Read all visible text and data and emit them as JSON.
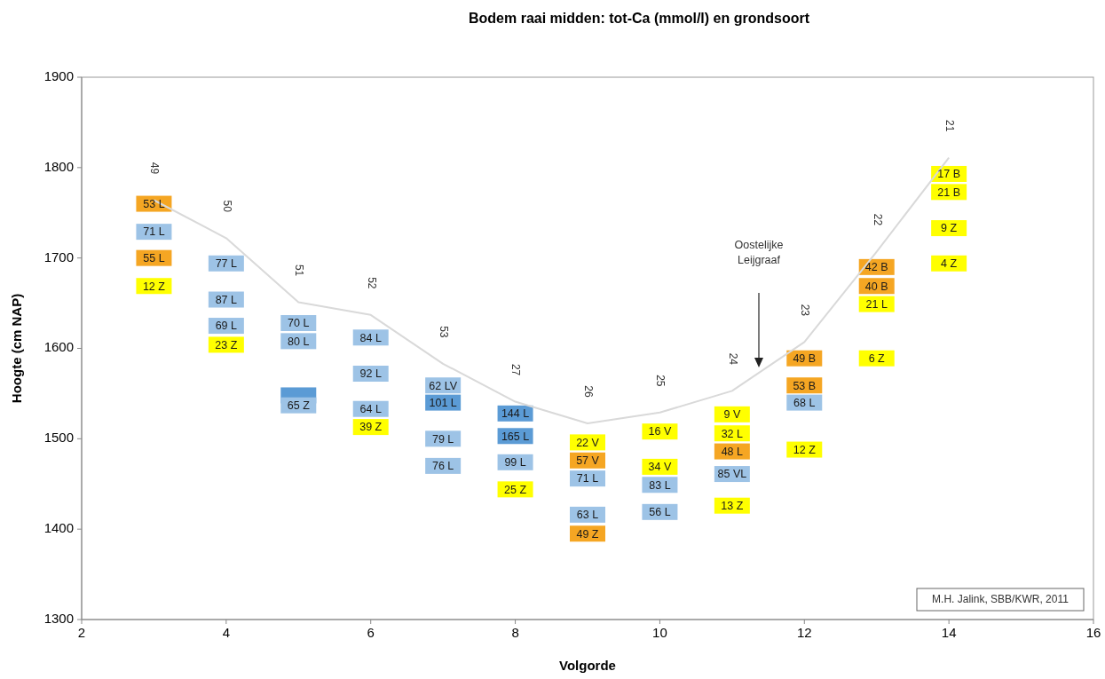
{
  "chart_data": {
    "type": "scatter",
    "title": "Bodem raai midden: tot-Ca (mmol/l)  en grondsoort",
    "xlabel": "Volgorde",
    "ylabel": "Hoogte (cm NAP)",
    "xlim": [
      2,
      16
    ],
    "xticks": [
      2,
      4,
      6,
      8,
      10,
      12,
      14,
      16
    ],
    "ylim": [
      1300,
      1900
    ],
    "yticks": [
      1300,
      1400,
      1500,
      1600,
      1700,
      1800,
      1900
    ],
    "grid": false,
    "marker": "square",
    "series": [
      {
        "type": "line",
        "color": "#d9d9d9",
        "marker": "none",
        "line_style": "solid",
        "x": [
          3,
          4,
          5,
          6,
          7,
          8,
          9,
          10,
          11,
          12,
          13,
          14
        ],
        "values": [
          1764,
          1722,
          1651,
          1637,
          1583,
          1541,
          1517,
          1529,
          1553,
          1607,
          1707,
          1811
        ]
      },
      {
        "color": "#5b9bd5",
        "x": [
          5,
          7,
          8,
          8
        ],
        "values": [
          1548,
          1540,
          1528,
          1503
        ]
      },
      {
        "color": "#9dc3e6",
        "x": [
          3,
          4,
          4,
          4,
          5,
          5,
          5,
          6,
          6,
          6,
          7,
          7,
          7,
          8,
          9,
          9,
          10,
          10,
          11,
          12
        ],
        "values": [
          1729,
          1694,
          1654,
          1625,
          1628,
          1608,
          1537,
          1612,
          1572,
          1533,
          1559,
          1500,
          1470,
          1474,
          1456,
          1416,
          1449,
          1419,
          1461,
          1540
        ]
      },
      {
        "color": "#f5a623",
        "x": [
          3,
          3,
          9,
          9,
          11,
          12,
          12,
          13,
          13
        ],
        "values": [
          1760,
          1700,
          1476,
          1395,
          1486,
          1589,
          1559,
          1690,
          1669
        ]
      },
      {
        "color": "#ffff00",
        "x": [
          3,
          4,
          6,
          8,
          9,
          10,
          10,
          11,
          11,
          11,
          12,
          13,
          13,
          14,
          14,
          14,
          14
        ],
        "values": [
          1669,
          1604,
          1513,
          1444,
          1496,
          1508,
          1469,
          1527,
          1506,
          1426,
          1488,
          1649,
          1589,
          1793,
          1773,
          1733,
          1694
        ]
      }
    ],
    "annotations": [
      {
        "text": "49",
        "x": 3,
        "y": 1764
      },
      {
        "text": "50",
        "x": 4,
        "y": 1722
      },
      {
        "text": "51",
        "x": 5,
        "y": 1651
      },
      {
        "text": "52",
        "x": 6,
        "y": 1637
      },
      {
        "text": "53",
        "x": 7,
        "y": 1583
      },
      {
        "text": "27",
        "x": 8,
        "y": 1541
      },
      {
        "text": "26",
        "x": 9,
        "y": 1517
      },
      {
        "text": "25",
        "x": 10,
        "y": 1529
      },
      {
        "text": "24",
        "x": 11,
        "y": 1553
      },
      {
        "text": "23",
        "x": 12,
        "y": 1607
      },
      {
        "text": "22",
        "x": 13,
        "y": 1707
      },
      {
        "text": "21",
        "x": 14,
        "y": 1811
      },
      {
        "text": "101 L",
        "x": 7,
        "y": 1540
      },
      {
        "text": "144 L",
        "x": 8,
        "y": 1528
      },
      {
        "text": "165 L",
        "x": 8,
        "y": 1503
      },
      {
        "text": "71 L",
        "x": 3,
        "y": 1729
      },
      {
        "text": "77 L",
        "x": 4,
        "y": 1694
      },
      {
        "text": "87 L",
        "x": 4,
        "y": 1654
      },
      {
        "text": "69 L",
        "x": 4,
        "y": 1625
      },
      {
        "text": "70 L",
        "x": 5,
        "y": 1628
      },
      {
        "text": "80 L",
        "x": 5,
        "y": 1608
      },
      {
        "text": "65 Z",
        "x": 5,
        "y": 1537
      },
      {
        "text": "84 L",
        "x": 6,
        "y": 1612
      },
      {
        "text": "92 L",
        "x": 6,
        "y": 1572
      },
      {
        "text": "64 L",
        "x": 6,
        "y": 1533
      },
      {
        "text": "62 LV",
        "x": 7,
        "y": 1559
      },
      {
        "text": "79 L",
        "x": 7,
        "y": 1500
      },
      {
        "text": "76 L",
        "x": 7,
        "y": 1470
      },
      {
        "text": "99 L",
        "x": 8,
        "y": 1474
      },
      {
        "text": "71 L",
        "x": 9,
        "y": 1456
      },
      {
        "text": "63 L",
        "x": 9,
        "y": 1416
      },
      {
        "text": "83 L",
        "x": 10,
        "y": 1449
      },
      {
        "text": "56 L",
        "x": 10,
        "y": 1419
      },
      {
        "text": "85 VL",
        "x": 11,
        "y": 1461
      },
      {
        "text": "68 L",
        "x": 12,
        "y": 1540
      },
      {
        "text": "53 L",
        "x": 3,
        "y": 1760
      },
      {
        "text": "55 L",
        "x": 3,
        "y": 1700
      },
      {
        "text": "57 V",
        "x": 9,
        "y": 1476
      },
      {
        "text": "49 Z",
        "x": 9,
        "y": 1395
      },
      {
        "text": "48 L",
        "x": 11,
        "y": 1486
      },
      {
        "text": "49 B",
        "x": 12,
        "y": 1589
      },
      {
        "text": "53 B",
        "x": 12,
        "y": 1559
      },
      {
        "text": "42 B",
        "x": 13,
        "y": 1690
      },
      {
        "text": "40 B",
        "x": 13,
        "y": 1669
      },
      {
        "text": "12 Z",
        "x": 3,
        "y": 1669
      },
      {
        "text": "23 Z",
        "x": 4,
        "y": 1604
      },
      {
        "text": "39 Z",
        "x": 6,
        "y": 1513
      },
      {
        "text": "25 Z",
        "x": 8,
        "y": 1444
      },
      {
        "text": "22 V",
        "x": 9,
        "y": 1496
      },
      {
        "text": "16 V",
        "x": 10,
        "y": 1508
      },
      {
        "text": "34 V",
        "x": 10,
        "y": 1469
      },
      {
        "text": "9 V",
        "x": 11,
        "y": 1527
      },
      {
        "text": "32 L",
        "x": 11,
        "y": 1506
      },
      {
        "text": "13 Z",
        "x": 11,
        "y": 1426
      },
      {
        "text": "12 Z",
        "x": 12,
        "y": 1488
      },
      {
        "text": "21 L",
        "x": 13,
        "y": 1649
      },
      {
        "text": "6 Z",
        "x": 13,
        "y": 1589
      },
      {
        "text": "17 B",
        "x": 14,
        "y": 1793
      },
      {
        "text": "21 B",
        "x": 14,
        "y": 1773
      },
      {
        "text": "9 Z",
        "x": 14,
        "y": 1733
      },
      {
        "text": "4 Z",
        "x": 14,
        "y": 1694
      },
      "Oostelijke\nLeijgraaf",
      "M.H. Jalink, SBB/KWR, 2011"
    ]
  }
}
